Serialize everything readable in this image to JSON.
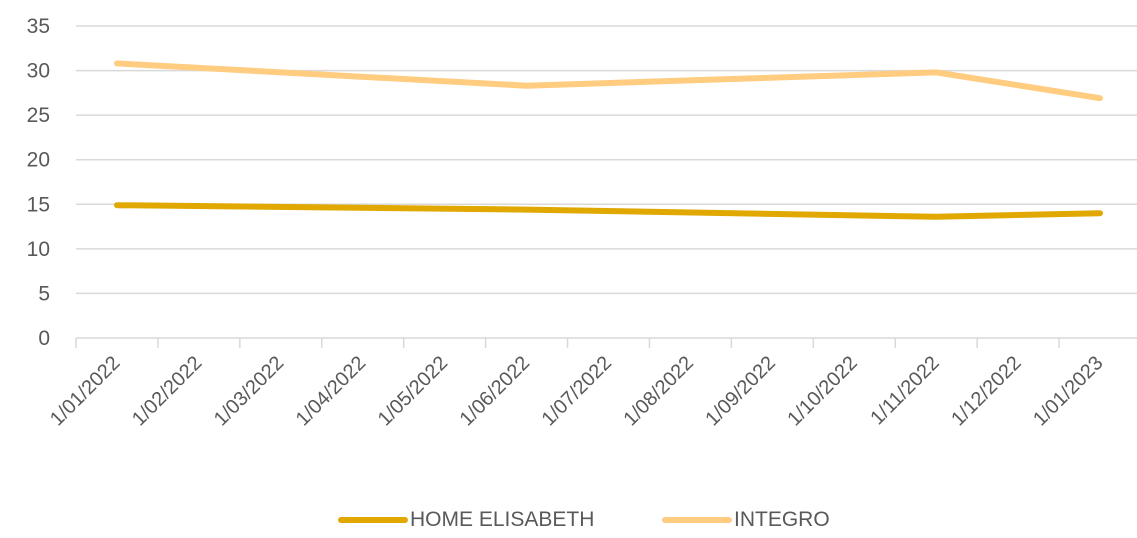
{
  "chart_data": {
    "type": "line",
    "x": [
      "1/01/2022",
      "1/02/2022",
      "1/03/2022",
      "1/04/2022",
      "1/05/2022",
      "1/06/2022",
      "1/07/2022",
      "1/08/2022",
      "1/09/2022",
      "1/10/2022",
      "1/11/2022",
      "1/12/2022",
      "1/01/2023"
    ],
    "series": [
      {
        "name": "HOME ELISABETH",
        "color": "#E0A800",
        "points": [
          {
            "x": "1/01/2022",
            "y": 14.9
          },
          {
            "x": "1/06/2022",
            "y": 14.4
          },
          {
            "x": "1/11/2022",
            "y": 13.6
          },
          {
            "x": "1/01/2023",
            "y": 14.0
          }
        ]
      },
      {
        "name": "INTEGRO",
        "color": "#FFCC80",
        "points": [
          {
            "x": "1/01/2022",
            "y": 30.8
          },
          {
            "x": "1/06/2022",
            "y": 28.3
          },
          {
            "x": "1/11/2022",
            "y": 29.8
          },
          {
            "x": "1/01/2023",
            "y": 26.9
          }
        ]
      }
    ],
    "yticks": [
      "0",
      "5",
      "10",
      "15",
      "20",
      "25",
      "30",
      "35"
    ],
    "ylim": [
      0,
      35
    ],
    "grid": true,
    "legend_position": "bottom"
  }
}
